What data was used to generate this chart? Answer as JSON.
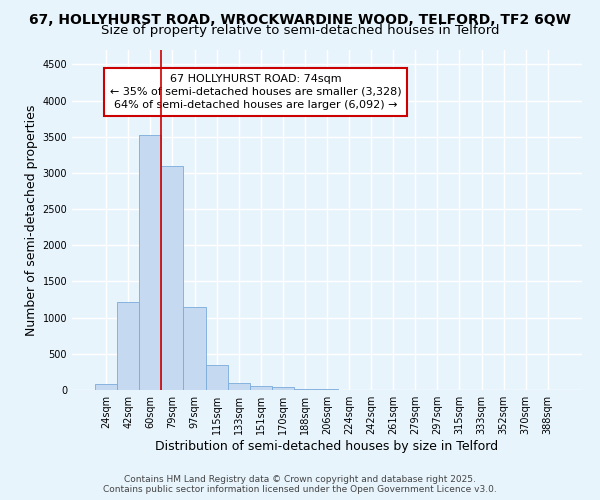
{
  "title_line1": "67, HOLLYHURST ROAD, WROCKWARDINE WOOD, TELFORD, TF2 6QW",
  "title_line2": "Size of property relative to semi-detached houses in Telford",
  "xlabel": "Distribution of semi-detached houses by size in Telford",
  "ylabel": "Number of semi-detached properties",
  "categories": [
    "24sqm",
    "42sqm",
    "60sqm",
    "79sqm",
    "97sqm",
    "115sqm",
    "133sqm",
    "151sqm",
    "170sqm",
    "188sqm",
    "206sqm",
    "224sqm",
    "242sqm",
    "261sqm",
    "279sqm",
    "297sqm",
    "315sqm",
    "333sqm",
    "352sqm",
    "370sqm",
    "388sqm"
  ],
  "values": [
    80,
    1220,
    3520,
    3100,
    1150,
    340,
    100,
    60,
    40,
    20,
    8,
    4,
    2,
    1,
    1,
    0,
    0,
    0,
    0,
    0,
    0
  ],
  "bar_color": "#c5d9f0",
  "bar_edgecolor": "#7aabdb",
  "vline_color": "#cc0000",
  "annotation_title": "67 HOLLYHURST ROAD: 74sqm",
  "annotation_line2": "← 35% of semi-detached houses are smaller (3,328)",
  "annotation_line3": "64% of semi-detached houses are larger (6,092) →",
  "annotation_box_facecolor": "#ffffff",
  "annotation_box_edgecolor": "#cc0000",
  "ylim": [
    0,
    4700
  ],
  "yticks": [
    0,
    500,
    1000,
    1500,
    2000,
    2500,
    3000,
    3500,
    4000,
    4500
  ],
  "bg_color": "#e8f4fc",
  "grid_color": "#ffffff",
  "title_fontsize": 10,
  "subtitle_fontsize": 9.5,
  "axis_label_fontsize": 9,
  "tick_fontsize": 7,
  "annotation_fontsize": 8,
  "footer_fontsize": 6.5
}
